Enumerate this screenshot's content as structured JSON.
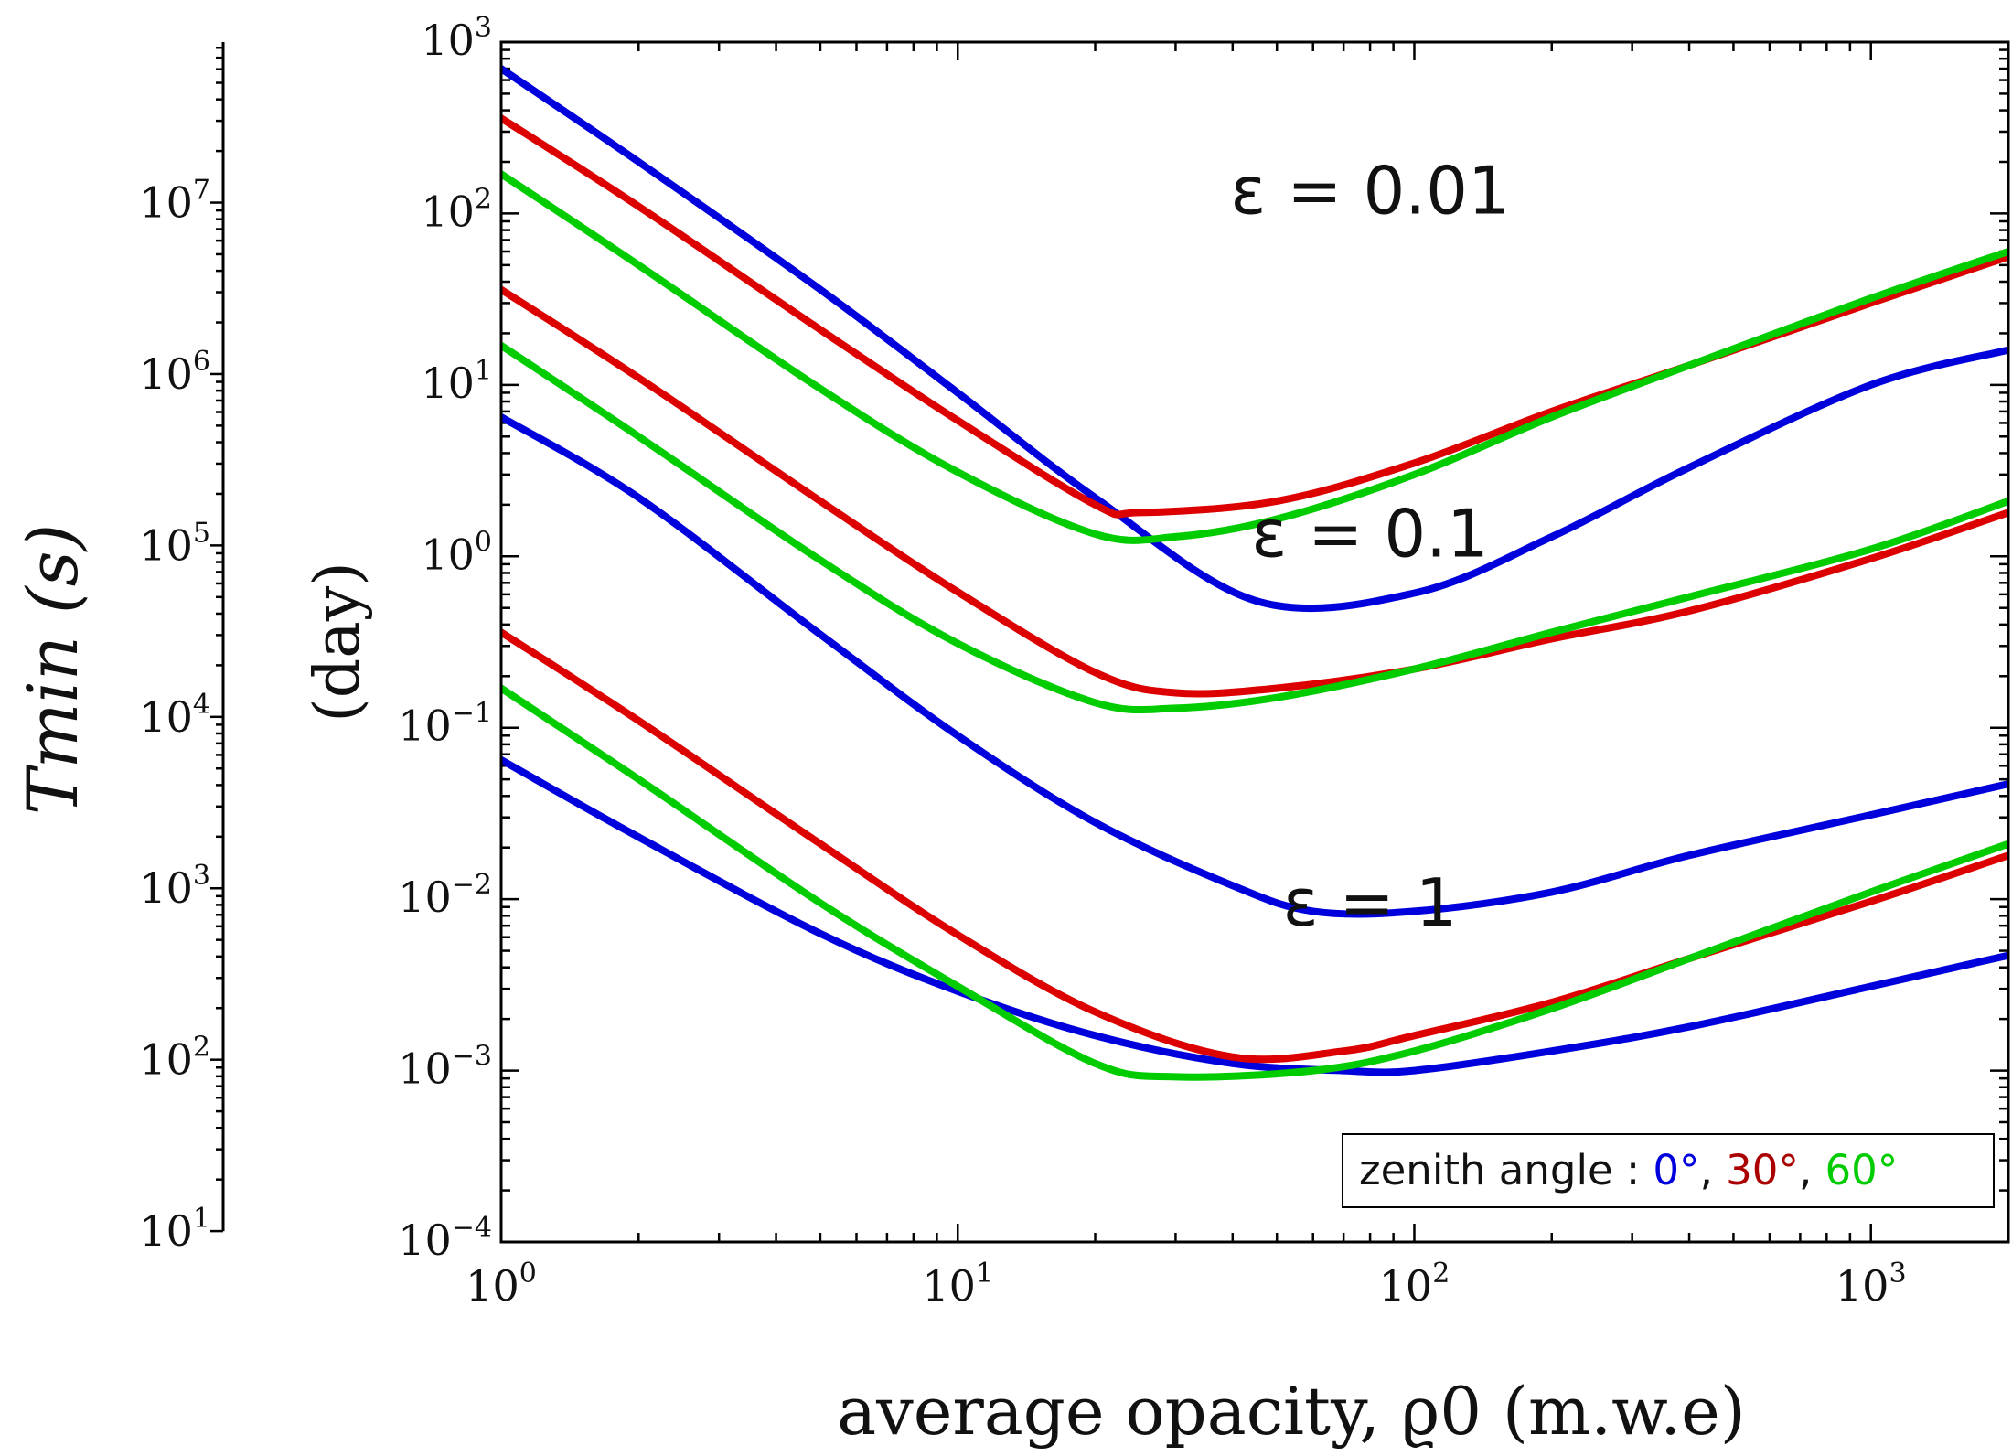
{
  "chart_data": {
    "type": "line",
    "title": "",
    "xlabel": "average opacity, ϱ0 (m.w.e)",
    "ylabel_day": "(day)",
    "ylabel_sec": "Tmin (s)",
    "xscale": "log",
    "yscale": "log",
    "xlim": [
      1,
      2000
    ],
    "ylim": [
      0.0001,
      1000
    ],
    "ylim_seconds": [
      8.64,
      86400000
    ],
    "grid": false,
    "x_ticks": [
      {
        "value": 1,
        "base": "10",
        "exp": "0"
      },
      {
        "value": 10,
        "base": "10",
        "exp": "1"
      },
      {
        "value": 100,
        "base": "10",
        "exp": "2"
      },
      {
        "value": 1000,
        "base": "10",
        "exp": "3"
      }
    ],
    "y_ticks_day": [
      {
        "value": 0.0001,
        "base": "10",
        "exp": "−4"
      },
      {
        "value": 0.001,
        "base": "10",
        "exp": "−3"
      },
      {
        "value": 0.01,
        "base": "10",
        "exp": "−2"
      },
      {
        "value": 0.1,
        "base": "10",
        "exp": "−1"
      },
      {
        "value": 1,
        "base": "10",
        "exp": "0"
      },
      {
        "value": 10,
        "base": "10",
        "exp": "1"
      },
      {
        "value": 100,
        "base": "10",
        "exp": "2"
      },
      {
        "value": 1000,
        "base": "10",
        "exp": "3"
      }
    ],
    "y_ticks_sec": [
      {
        "value": 10,
        "base": "10",
        "exp": "1"
      },
      {
        "value": 100,
        "base": "10",
        "exp": "2"
      },
      {
        "value": 1000,
        "base": "10",
        "exp": "3"
      },
      {
        "value": 10000,
        "base": "10",
        "exp": "4"
      },
      {
        "value": 100000,
        "base": "10",
        "exp": "5"
      },
      {
        "value": 1000000,
        "base": "10",
        "exp": "6"
      },
      {
        "value": 10000000,
        "base": "10",
        "exp": "7"
      }
    ],
    "groups": [
      {
        "label": "ε = 0.01",
        "epsilon": 0.01,
        "label_x": 80,
        "label_y": 100
      },
      {
        "label": "ε = 0.1",
        "epsilon": 0.1,
        "label_x": 80,
        "label_y": 1
      },
      {
        "label": "ε = 1",
        "epsilon": 1,
        "label_x": 80,
        "label_y": 0.007
      }
    ],
    "series": [
      {
        "name": "ε=1, zenith 0°",
        "color": "#0000dd",
        "x": [
          1,
          2,
          5,
          10,
          20,
          40,
          70,
          100,
          200,
          400,
          1000,
          2000
        ],
        "y": [
          0.065,
          0.023,
          0.0063,
          0.0029,
          0.0016,
          0.0011,
          0.001,
          0.001,
          0.0013,
          0.0018,
          0.0031,
          0.0047
        ]
      },
      {
        "name": "ε=1, zenith 30°",
        "color": "#dd0000",
        "x": [
          1,
          2,
          5,
          10,
          20,
          40,
          70,
          100,
          200,
          400,
          1000,
          2000
        ],
        "y": [
          0.36,
          0.11,
          0.021,
          0.0062,
          0.0022,
          0.0012,
          0.0013,
          0.0016,
          0.0025,
          0.0045,
          0.0097,
          0.018
        ]
      },
      {
        "name": "ε=1, zenith 60°",
        "color": "#00cc00",
        "x": [
          1,
          2,
          5,
          10,
          20,
          30,
          60,
          100,
          200,
          400,
          1000,
          2000
        ],
        "y": [
          0.17,
          0.05,
          0.0095,
          0.0031,
          0.0011,
          0.00092,
          0.001,
          0.0013,
          0.0023,
          0.0045,
          0.011,
          0.021
        ]
      },
      {
        "name": "ε=0.1, zenith 0°",
        "color": "#0000dd",
        "x": [
          1,
          2,
          5,
          10,
          20,
          40,
          60,
          100,
          200,
          400,
          1000,
          2000
        ],
        "y": [
          6.5,
          2.2,
          0.35,
          0.09,
          0.028,
          0.012,
          0.0085,
          0.0085,
          0.011,
          0.018,
          0.031,
          0.047
        ]
      },
      {
        "name": "ε=0.1, zenith 30°",
        "color": "#dd0000",
        "x": [
          1,
          2,
          5,
          10,
          20,
          30,
          50,
          100,
          200,
          400,
          1000,
          2000
        ],
        "y": [
          36,
          11,
          2.1,
          0.62,
          0.21,
          0.16,
          0.17,
          0.22,
          0.33,
          0.48,
          0.97,
          1.8
        ]
      },
      {
        "name": "ε=0.1, zenith 60°",
        "color": "#00cc00",
        "x": [
          1,
          2,
          5,
          10,
          20,
          30,
          50,
          100,
          200,
          400,
          1000,
          2000
        ],
        "y": [
          17,
          5,
          0.95,
          0.31,
          0.14,
          0.13,
          0.15,
          0.22,
          0.36,
          0.58,
          1.1,
          2.1
        ]
      },
      {
        "name": "ε=0.01, zenith 0°",
        "color": "#0000dd",
        "x": [
          1,
          2,
          5,
          10,
          20,
          45,
          100,
          200,
          400,
          1000,
          2000
        ],
        "y": [
          700,
          200,
          36,
          9,
          2.2,
          0.55,
          0.61,
          1.3,
          3.3,
          10,
          16
        ]
      },
      {
        "name": "ε=0.01, zenith 30°",
        "color": "#dd0000",
        "x": [
          1,
          2,
          5,
          10,
          20,
          25,
          50,
          100,
          200,
          400,
          1000,
          2000
        ],
        "y": [
          360,
          110,
          21,
          6.2,
          2.0,
          1.8,
          2.1,
          3.5,
          7,
          13,
          30,
          56
        ]
      },
      {
        "name": "ε=0.01, zenith 60°",
        "color": "#00cc00",
        "x": [
          1,
          2,
          5,
          10,
          20,
          30,
          50,
          100,
          200,
          400,
          1000,
          2000
        ],
        "y": [
          170,
          50,
          9.5,
          3.1,
          1.35,
          1.3,
          1.65,
          3.0,
          6.5,
          13,
          32,
          60
        ]
      }
    ],
    "legend": {
      "placement": "bottom-right",
      "prefix": "zenith angle : ",
      "entries": [
        {
          "text": "0°",
          "color": "#0000dd"
        },
        {
          "text": "30°",
          "color": "#aa0000"
        },
        {
          "text": "60°",
          "color": "#00cc00"
        }
      ],
      "separator": ", "
    }
  }
}
